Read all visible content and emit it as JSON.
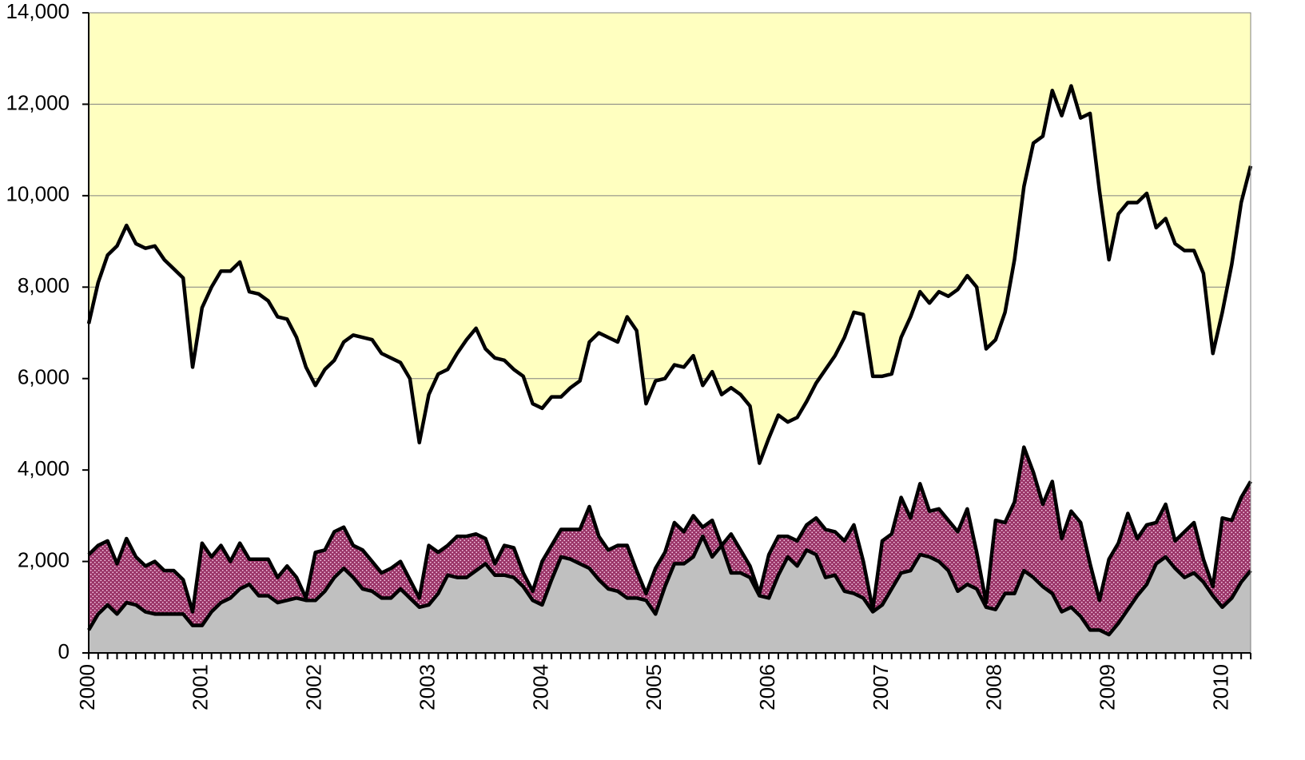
{
  "chart_data": {
    "type": "stacked_area",
    "categories": [
      "2000",
      null,
      null,
      null,
      null,
      null,
      null,
      null,
      null,
      null,
      null,
      null,
      "2001",
      null,
      null,
      null,
      null,
      null,
      null,
      null,
      null,
      null,
      null,
      null,
      "2002",
      null,
      null,
      null,
      null,
      null,
      null,
      null,
      null,
      null,
      null,
      null,
      "2003",
      null,
      null,
      null,
      null,
      null,
      null,
      null,
      null,
      null,
      null,
      null,
      "2004",
      null,
      null,
      null,
      null,
      null,
      null,
      null,
      null,
      null,
      null,
      null,
      "2005",
      null,
      null,
      null,
      null,
      null,
      null,
      null,
      null,
      null,
      null,
      null,
      "2006",
      null,
      null,
      null,
      null,
      null,
      null,
      null,
      null,
      null,
      null,
      null,
      "2007",
      null,
      null,
      null,
      null,
      null,
      null,
      null,
      null,
      null,
      null,
      null,
      "2008",
      null,
      null,
      null,
      null,
      null,
      null,
      null,
      null,
      null,
      null,
      null,
      "2009",
      null,
      null,
      null,
      null,
      null,
      null,
      null,
      null,
      null,
      null,
      null,
      "2010",
      null,
      null,
      null
    ],
    "series": [
      {
        "color": "#c0c0c0",
        "values": [
          500,
          850,
          1050,
          850,
          1100,
          1050,
          900,
          850,
          850,
          850,
          850,
          600,
          600,
          900,
          1100,
          1200,
          1400,
          1500,
          1250,
          1250,
          1100,
          1150,
          1200,
          1150,
          1150,
          1350,
          1650,
          1850,
          1650,
          1400,
          1350,
          1200,
          1200,
          1400,
          1200,
          1000,
          1050,
          1300,
          1700,
          1650,
          1650,
          1800,
          1950,
          1700,
          1700,
          1650,
          1450,
          1150,
          1050,
          1600,
          2100,
          2050,
          1950,
          1850,
          1600,
          1400,
          1350,
          1200,
          1200,
          1150,
          850,
          1450,
          1950,
          1950,
          2100,
          2550,
          2100,
          2350,
          1750,
          1750,
          1650,
          1250,
          1200,
          1700,
          2100,
          1900,
          2250,
          2150,
          1650,
          1700,
          1350,
          1300,
          1200,
          900,
          1050,
          1400,
          1750,
          1800,
          2150,
          2100,
          2000,
          1800,
          1350,
          1500,
          1400,
          1000,
          950,
          1300,
          1300,
          1800,
          1650,
          1450,
          1300,
          900,
          1000,
          800,
          500,
          500,
          400,
          650,
          950,
          1250,
          1500,
          1950,
          2100,
          1850,
          1650,
          1750,
          1550,
          1250,
          1000,
          1200,
          1550,
          1800
        ]
      },
      {
        "color": "#993366",
        "pattern": "dots",
        "values": [
          1650,
          1500,
          1400,
          1100,
          1400,
          1050,
          1000,
          1150,
          950,
          950,
          750,
          300,
          1800,
          1200,
          1250,
          800,
          1000,
          550,
          800,
          800,
          550,
          750,
          450,
          50,
          1050,
          900,
          1000,
          900,
          700,
          850,
          650,
          550,
          650,
          600,
          400,
          200,
          1300,
          900,
          650,
          900,
          900,
          800,
          550,
          250,
          650,
          650,
          300,
          200,
          950,
          750,
          600,
          650,
          750,
          1350,
          950,
          850,
          1000,
          1150,
          600,
          150,
          1000,
          750,
          900,
          700,
          900,
          200,
          800,
          0,
          850,
          500,
          250,
          50,
          950,
          850,
          450,
          550,
          550,
          800,
          1050,
          950,
          1100,
          1500,
          800,
          50,
          1400,
          1200,
          1650,
          1150,
          1550,
          1000,
          1150,
          1100,
          1300,
          1650,
          800,
          100,
          1950,
          1550,
          2000,
          2700,
          2300,
          1800,
          2450,
          1600,
          2100,
          2050,
          1450,
          650,
          1650,
          1750,
          2100,
          1250,
          1300,
          900,
          1150,
          600,
          1000,
          1100,
          500,
          200,
          1950,
          1700,
          1850,
          1950
        ]
      },
      {
        "color": "#ffffff",
        "values": [
          5050,
          5750,
          6250,
          6950,
          6850,
          6850,
          6950,
          6900,
          6800,
          6600,
          6600,
          5350,
          5150,
          5900,
          6000,
          6350,
          6150,
          5850,
          5800,
          5650,
          5700,
          5400,
          5250,
          5050,
          3650,
          3950,
          3750,
          4050,
          4600,
          4650,
          4850,
          4800,
          4600,
          4350,
          4400,
          3400,
          3300,
          3900,
          3850,
          4000,
          4300,
          4500,
          4150,
          4500,
          4050,
          3900,
          4300,
          4100,
          3350,
          3250,
          2900,
          3100,
          3250,
          3600,
          4450,
          4650,
          4450,
          5000,
          5250,
          4150,
          4100,
          3800,
          3450,
          3600,
          3500,
          3100,
          3250,
          3300,
          3200,
          3400,
          3500,
          2850,
          2550,
          2650,
          2500,
          2700,
          2700,
          2950,
          3500,
          3850,
          4450,
          4650,
          5400,
          5100,
          3600,
          3500,
          3500,
          4400,
          4200,
          4550,
          4750,
          4900,
          5300,
          5100,
          5800,
          5550,
          3950,
          4600,
          5300,
          5700,
          7200,
          8050,
          8550,
          9250,
          9300,
          8850,
          9850,
          8950,
          6550,
          7200,
          6800,
          7350,
          7250,
          6450,
          6250,
          6500,
          6150,
          5950,
          6250,
          5100,
          4500,
          5600,
          6450,
          6900
        ]
      }
    ],
    "line_color": "#000000",
    "plot_background": "#ffffc0",
    "ylim": [
      0,
      14000
    ],
    "yticks": [
      0,
      {
        "value": 2000,
        "label": "2,000"
      },
      {
        "value": 4000,
        "label": "4,000"
      },
      {
        "value": 6000,
        "label": "6,000"
      },
      {
        "value": 8000,
        "label": "8,000"
      },
      {
        "value": 10000,
        "label": "10,000"
      },
      {
        "value": 12000,
        "label": "12,000"
      },
      {
        "value": 14000,
        "label": "14,000"
      }
    ],
    "grid": true
  }
}
